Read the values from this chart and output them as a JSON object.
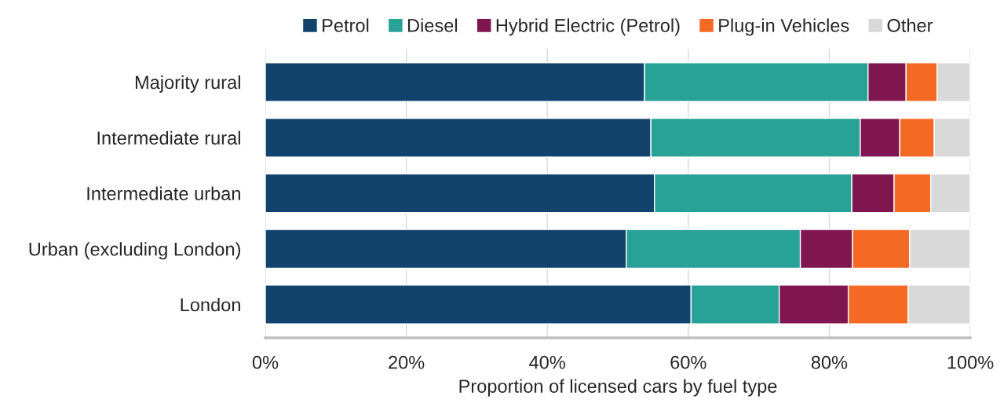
{
  "chart_data": {
    "type": "bar",
    "orientation": "horizontal",
    "stacked": true,
    "xlabel": "Proportion of licensed cars by fuel type",
    "categories": [
      "Majority rural",
      "Intermediate rural",
      "Intermediate urban",
      "Urban (excluding London)",
      "London"
    ],
    "series": [
      {
        "name": "Petrol",
        "color": "#12436d",
        "values": [
          53.8,
          54.7,
          55.2,
          51.2,
          60.4
        ]
      },
      {
        "name": "Diesel",
        "color": "#28a197",
        "values": [
          31.7,
          29.7,
          28.0,
          24.7,
          12.5
        ]
      },
      {
        "name": "Hybrid Electric (Petrol)",
        "color": "#801650",
        "values": [
          5.4,
          5.6,
          6.0,
          7.4,
          9.8
        ]
      },
      {
        "name": "Plug-in Vehicles",
        "color": "#f46a25",
        "values": [
          4.4,
          4.9,
          5.2,
          8.1,
          8.5
        ]
      },
      {
        "name": "Other",
        "color": "#d9d9d9",
        "values": [
          4.7,
          5.1,
          5.6,
          8.6,
          8.8
        ]
      }
    ],
    "xlim": [
      0,
      100
    ],
    "xticks": [
      {
        "value": 0,
        "label": "0%"
      },
      {
        "value": 20,
        "label": "20%"
      },
      {
        "value": 40,
        "label": "40%"
      },
      {
        "value": 60,
        "label": "60%"
      },
      {
        "value": 80,
        "label": "80%"
      },
      {
        "value": 100,
        "label": "100%"
      }
    ],
    "grid": "x",
    "legend": "top"
  }
}
